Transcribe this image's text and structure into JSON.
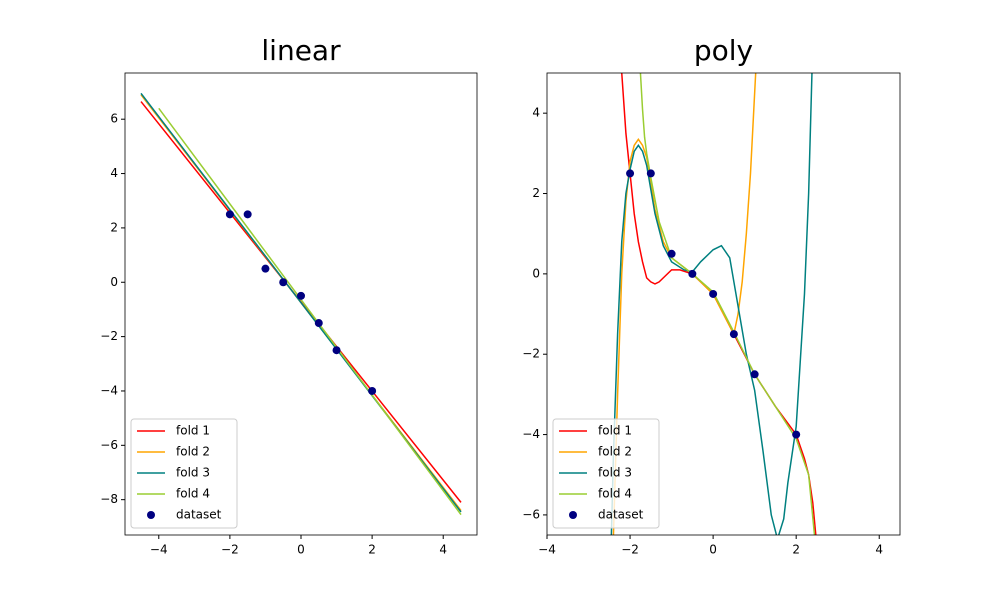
{
  "chart_data": [
    {
      "type": "line",
      "title": "linear",
      "xlim": [
        -4.95,
        4.95
      ],
      "ylim": [
        -9.3,
        7.7
      ],
      "xticks": [
        {
          "value": -4,
          "label": "−4"
        },
        {
          "value": -2,
          "label": "−2"
        },
        0,
        2,
        4
      ],
      "yticks": [
        {
          "value": -8,
          "label": "−8"
        },
        {
          "value": -6,
          "label": "−6"
        },
        {
          "value": -4,
          "label": "−4"
        },
        {
          "value": -2,
          "label": "−2"
        },
        0,
        2,
        4,
        6
      ],
      "legend": "lower left",
      "series": [
        {
          "name": "fold 1",
          "marker": "line",
          "color": "#ff0000",
          "x": [
            -4.5,
            4.5
          ],
          "values": [
            6.65,
            -8.1
          ]
        },
        {
          "name": "fold 2",
          "marker": "line",
          "color": "#ffa500",
          "x": [
            -4.5,
            4.5
          ],
          "values": [
            6.9,
            -8.4
          ]
        },
        {
          "name": "fold 3",
          "marker": "line",
          "color": "#008080",
          "x": [
            -4.5,
            4.5
          ],
          "values": [
            6.95,
            -8.45
          ]
        },
        {
          "name": "fold 4",
          "marker": "line",
          "color": "#9acd32",
          "x": [
            -4,
            4.5
          ],
          "values": [
            6.4,
            -8.55
          ]
        },
        {
          "name": "dataset",
          "marker": "scatter",
          "color": "#000080",
          "x": [
            -2,
            -1.5,
            -1,
            -0.5,
            0,
            0.5,
            1,
            2
          ],
          "values": [
            2.5,
            2.5,
            0.5,
            0,
            -0.5,
            -1.5,
            -2.5,
            -4
          ]
        }
      ]
    },
    {
      "type": "line",
      "title": "poly",
      "xlim": [
        -4,
        4.5
      ],
      "ylim": [
        -6.5,
        5
      ],
      "xticks": [
        {
          "value": -4,
          "label": "−4"
        },
        {
          "value": -2,
          "label": "−2"
        },
        0,
        2,
        4
      ],
      "yticks": [
        {
          "value": -6,
          "label": "−6"
        },
        {
          "value": -4,
          "label": "−4"
        },
        {
          "value": -2,
          "label": "−2"
        },
        0,
        2,
        4
      ],
      "legend": "lower left",
      "series": [
        {
          "name": "fold 1",
          "marker": "line",
          "color": "#ff0000",
          "x": [
            -2.25,
            -2.2,
            -2.1,
            -2,
            -1.9,
            -1.8,
            -1.7,
            -1.6,
            -1.5,
            -1.4,
            -1.3,
            -1.2,
            -1.0,
            -0.8,
            -0.5,
            0,
            0.5,
            1,
            1.5,
            2,
            2.2,
            2.3,
            2.4,
            2.5
          ],
          "values": [
            7,
            5,
            3.5,
            2.5,
            1.5,
            0.8,
            0.3,
            -0.1,
            -0.2,
            -0.25,
            -0.2,
            -0.1,
            0.1,
            0.1,
            0,
            -0.5,
            -1.5,
            -2.5,
            -3.3,
            -4.0,
            -4.6,
            -5.0,
            -5.7,
            -6.8
          ]
        },
        {
          "name": "fold 2",
          "marker": "line",
          "color": "#ffa500",
          "x": [
            -2.45,
            -2.4,
            -2.3,
            -2.2,
            -2.1,
            -2,
            -1.9,
            -1.8,
            -1.7,
            -1.6,
            -1.5,
            -1.4,
            -1.2,
            -1,
            -0.5,
            0,
            0.3,
            0.5,
            0.6,
            0.7,
            0.8,
            0.9,
            0.95,
            1.05
          ],
          "values": [
            -8,
            -6.5,
            -3,
            0,
            1.8,
            2.8,
            3.2,
            3.35,
            3.2,
            2.9,
            2.3,
            1.6,
            0.8,
            0.4,
            0,
            -0.5,
            -1.1,
            -1.5,
            -1.0,
            -0.2,
            1.0,
            2.5,
            3.5,
            5.5
          ]
        },
        {
          "name": "fold 3",
          "marker": "line",
          "color": "#008080",
          "x": [
            -2.5,
            -2.45,
            -2.4,
            -2.3,
            -2.2,
            -2.1,
            -2,
            -1.9,
            -1.8,
            -1.7,
            -1.6,
            -1.5,
            -1.4,
            -1.2,
            -1,
            -0.7,
            -0.5,
            -0.3,
            0,
            0.2,
            0.4,
            0.6,
            0.8,
            1,
            1.2,
            1.4,
            1.55,
            1.7,
            1.8,
            2,
            2.2,
            2.3,
            2.38,
            2.42
          ],
          "values": [
            -8,
            -6.5,
            -4.5,
            -1.5,
            0.8,
            2.0,
            2.6,
            3.05,
            3.2,
            3.05,
            2.7,
            2.1,
            1.5,
            0.7,
            0.3,
            0.1,
            0.05,
            0.3,
            0.6,
            0.7,
            0.4,
            -0.8,
            -2,
            -2.9,
            -4.4,
            -6,
            -6.6,
            -6.1,
            -5.2,
            -3.8,
            -0.5,
            2,
            5,
            6.5
          ]
        },
        {
          "name": "fold 4",
          "marker": "line",
          "color": "#9acd32",
          "x": [
            -1.8,
            -1.75,
            -1.7,
            -1.65,
            -1.6,
            -1.5,
            -1.3,
            -1,
            -0.5,
            0,
            0.5,
            1,
            1.5,
            2,
            2.3,
            2.45
          ],
          "values": [
            6,
            5,
            4.1,
            3.4,
            3.0,
            2.4,
            1.3,
            0.4,
            0,
            -0.45,
            -1.45,
            -2.5,
            -3.3,
            -4.1,
            -5,
            -6.6
          ]
        },
        {
          "name": "dataset",
          "marker": "scatter",
          "color": "#000080",
          "x": [
            -2,
            -1.5,
            -1,
            -0.5,
            0,
            0.5,
            1,
            2
          ],
          "values": [
            2.5,
            2.5,
            0.5,
            0,
            -0.5,
            -1.5,
            -2.5,
            -4
          ]
        }
      ]
    }
  ]
}
